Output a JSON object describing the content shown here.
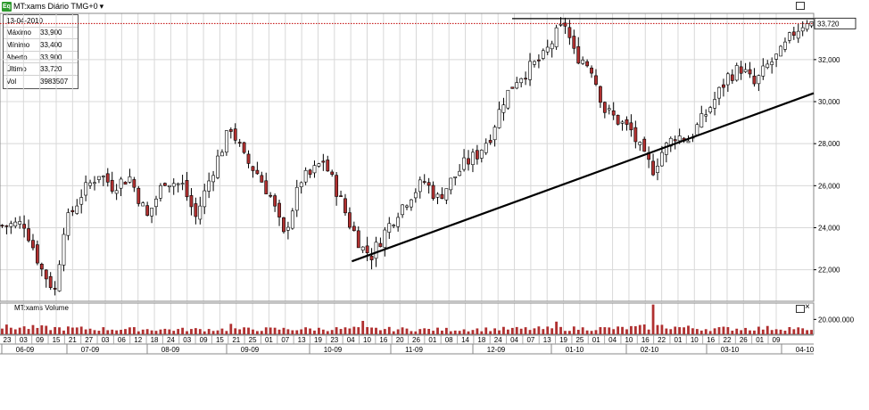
{
  "header": {
    "icon_label": "Eq",
    "title": "MT:xams Diário TMG+0",
    "dropdown_glyph": "▾"
  },
  "info": {
    "date": "13-04-2010",
    "rows": [
      {
        "label": "Máximo",
        "value": "33,900"
      },
      {
        "label": "Mínimo",
        "value": "33,400"
      },
      {
        "label": "Aberto",
        "value": "33,900"
      },
      {
        "label": "Último",
        "value": "33,720"
      },
      {
        "label": "Vol",
        "value": "3983507"
      }
    ]
  },
  "volume_panel": {
    "title": "MT:xams Volume",
    "tick_label": "20.000.000",
    "close_glyph": "×"
  },
  "colors": {
    "up": "#ffffff",
    "down": "#b03030",
    "wick": "#000000",
    "grid": "#d8d8d8",
    "last_price_line": "#c00000",
    "volume": "#b03030"
  },
  "chart_data": {
    "type": "candlestick",
    "title": "",
    "xlabel": "",
    "ylabel": "",
    "ylim": [
      20500,
      34200
    ],
    "y_ticks": [
      22000,
      24000,
      26000,
      28000,
      30000,
      32000
    ],
    "y_tick_labels": [
      "22,000",
      "24,000",
      "26,000",
      "28,000",
      "30,000",
      "32,000"
    ],
    "last_price": 33720,
    "last_price_label": "33,720",
    "resistance_level": 33950,
    "support_trendline": {
      "from": [
        "2009-10-27",
        22400
      ],
      "to": [
        "2010-04-15",
        30400
      ]
    },
    "day_ticks": [
      "23",
      "03",
      "09",
      "15",
      "21",
      "27",
      "03",
      "06",
      "12",
      "18",
      "24",
      "03",
      "09",
      "15",
      "21",
      "25",
      "01",
      "07",
      "13",
      "19",
      "23",
      "04",
      "10",
      "16",
      "20",
      "26",
      "01",
      "08",
      "14",
      "18",
      "24",
      "04",
      "07",
      "13",
      "19",
      "25",
      "01",
      "04",
      "10",
      "16",
      "22",
      "01",
      "10",
      "16",
      "22",
      "26",
      "01",
      "09"
    ],
    "month_ticks": [
      "06-09",
      "07-09",
      "08-09",
      "09-09",
      "10-09",
      "11-09",
      "12-09",
      "01-10",
      "02-10",
      "03-10",
      "04-10"
    ],
    "volume_ylim": [
      0,
      42000000
    ],
    "waypoints": [
      [
        0,
        24100
      ],
      [
        5,
        24200
      ],
      [
        9,
        22000
      ],
      [
        12,
        21000
      ],
      [
        14,
        24000
      ],
      [
        18,
        25600
      ],
      [
        22,
        26600
      ],
      [
        25,
        26000
      ],
      [
        29,
        26400
      ],
      [
        33,
        24500
      ],
      [
        37,
        26300
      ],
      [
        41,
        26000
      ],
      [
        44,
        24500
      ],
      [
        48,
        26800
      ],
      [
        52,
        28800
      ],
      [
        55,
        27300
      ],
      [
        58,
        26600
      ],
      [
        61,
        25500
      ],
      [
        64,
        23600
      ],
      [
        68,
        26300
      ],
      [
        70,
        26500
      ],
      [
        73,
        27200
      ],
      [
        76,
        25800
      ],
      [
        79,
        24200
      ],
      [
        82,
        23000
      ],
      [
        84,
        22700
      ],
      [
        87,
        23800
      ],
      [
        90,
        24800
      ],
      [
        93,
        25600
      ],
      [
        96,
        26200
      ],
      [
        99,
        25400
      ],
      [
        102,
        26200
      ],
      [
        105,
        27000
      ],
      [
        108,
        27500
      ],
      [
        111,
        28400
      ],
      [
        114,
        30100
      ],
      [
        117,
        31100
      ],
      [
        120,
        31600
      ],
      [
        123,
        32100
      ],
      [
        126,
        33200
      ],
      [
        128,
        33700
      ],
      [
        130,
        32300
      ],
      [
        132,
        32000
      ],
      [
        134,
        31600
      ],
      [
        137,
        29600
      ],
      [
        140,
        29100
      ],
      [
        143,
        28600
      ],
      [
        146,
        27300
      ],
      [
        148,
        26800
      ],
      [
        150,
        27600
      ],
      [
        153,
        28400
      ],
      [
        156,
        28200
      ],
      [
        159,
        29100
      ],
      [
        162,
        30100
      ],
      [
        165,
        31200
      ],
      [
        168,
        31600
      ],
      [
        171,
        30800
      ],
      [
        174,
        31700
      ],
      [
        177,
        32300
      ],
      [
        180,
        33300
      ],
      [
        183,
        33900
      ],
      [
        184,
        33720
      ]
    ],
    "volume_waypoints": [
      [
        0,
        9000000
      ],
      [
        20,
        7000000
      ],
      [
        40,
        6000000
      ],
      [
        60,
        6500000
      ],
      [
        80,
        7000000
      ],
      [
        100,
        6000000
      ],
      [
        120,
        7000000
      ],
      [
        140,
        7500000
      ],
      [
        150,
        10000000
      ],
      [
        160,
        7000000
      ],
      [
        180,
        8000000
      ],
      [
        184,
        4000000
      ]
    ],
    "volume_spikes": [
      [
        148,
        40000000
      ],
      [
        82,
        18000000
      ],
      [
        126,
        17000000
      ],
      [
        52,
        14000000
      ]
    ]
  }
}
